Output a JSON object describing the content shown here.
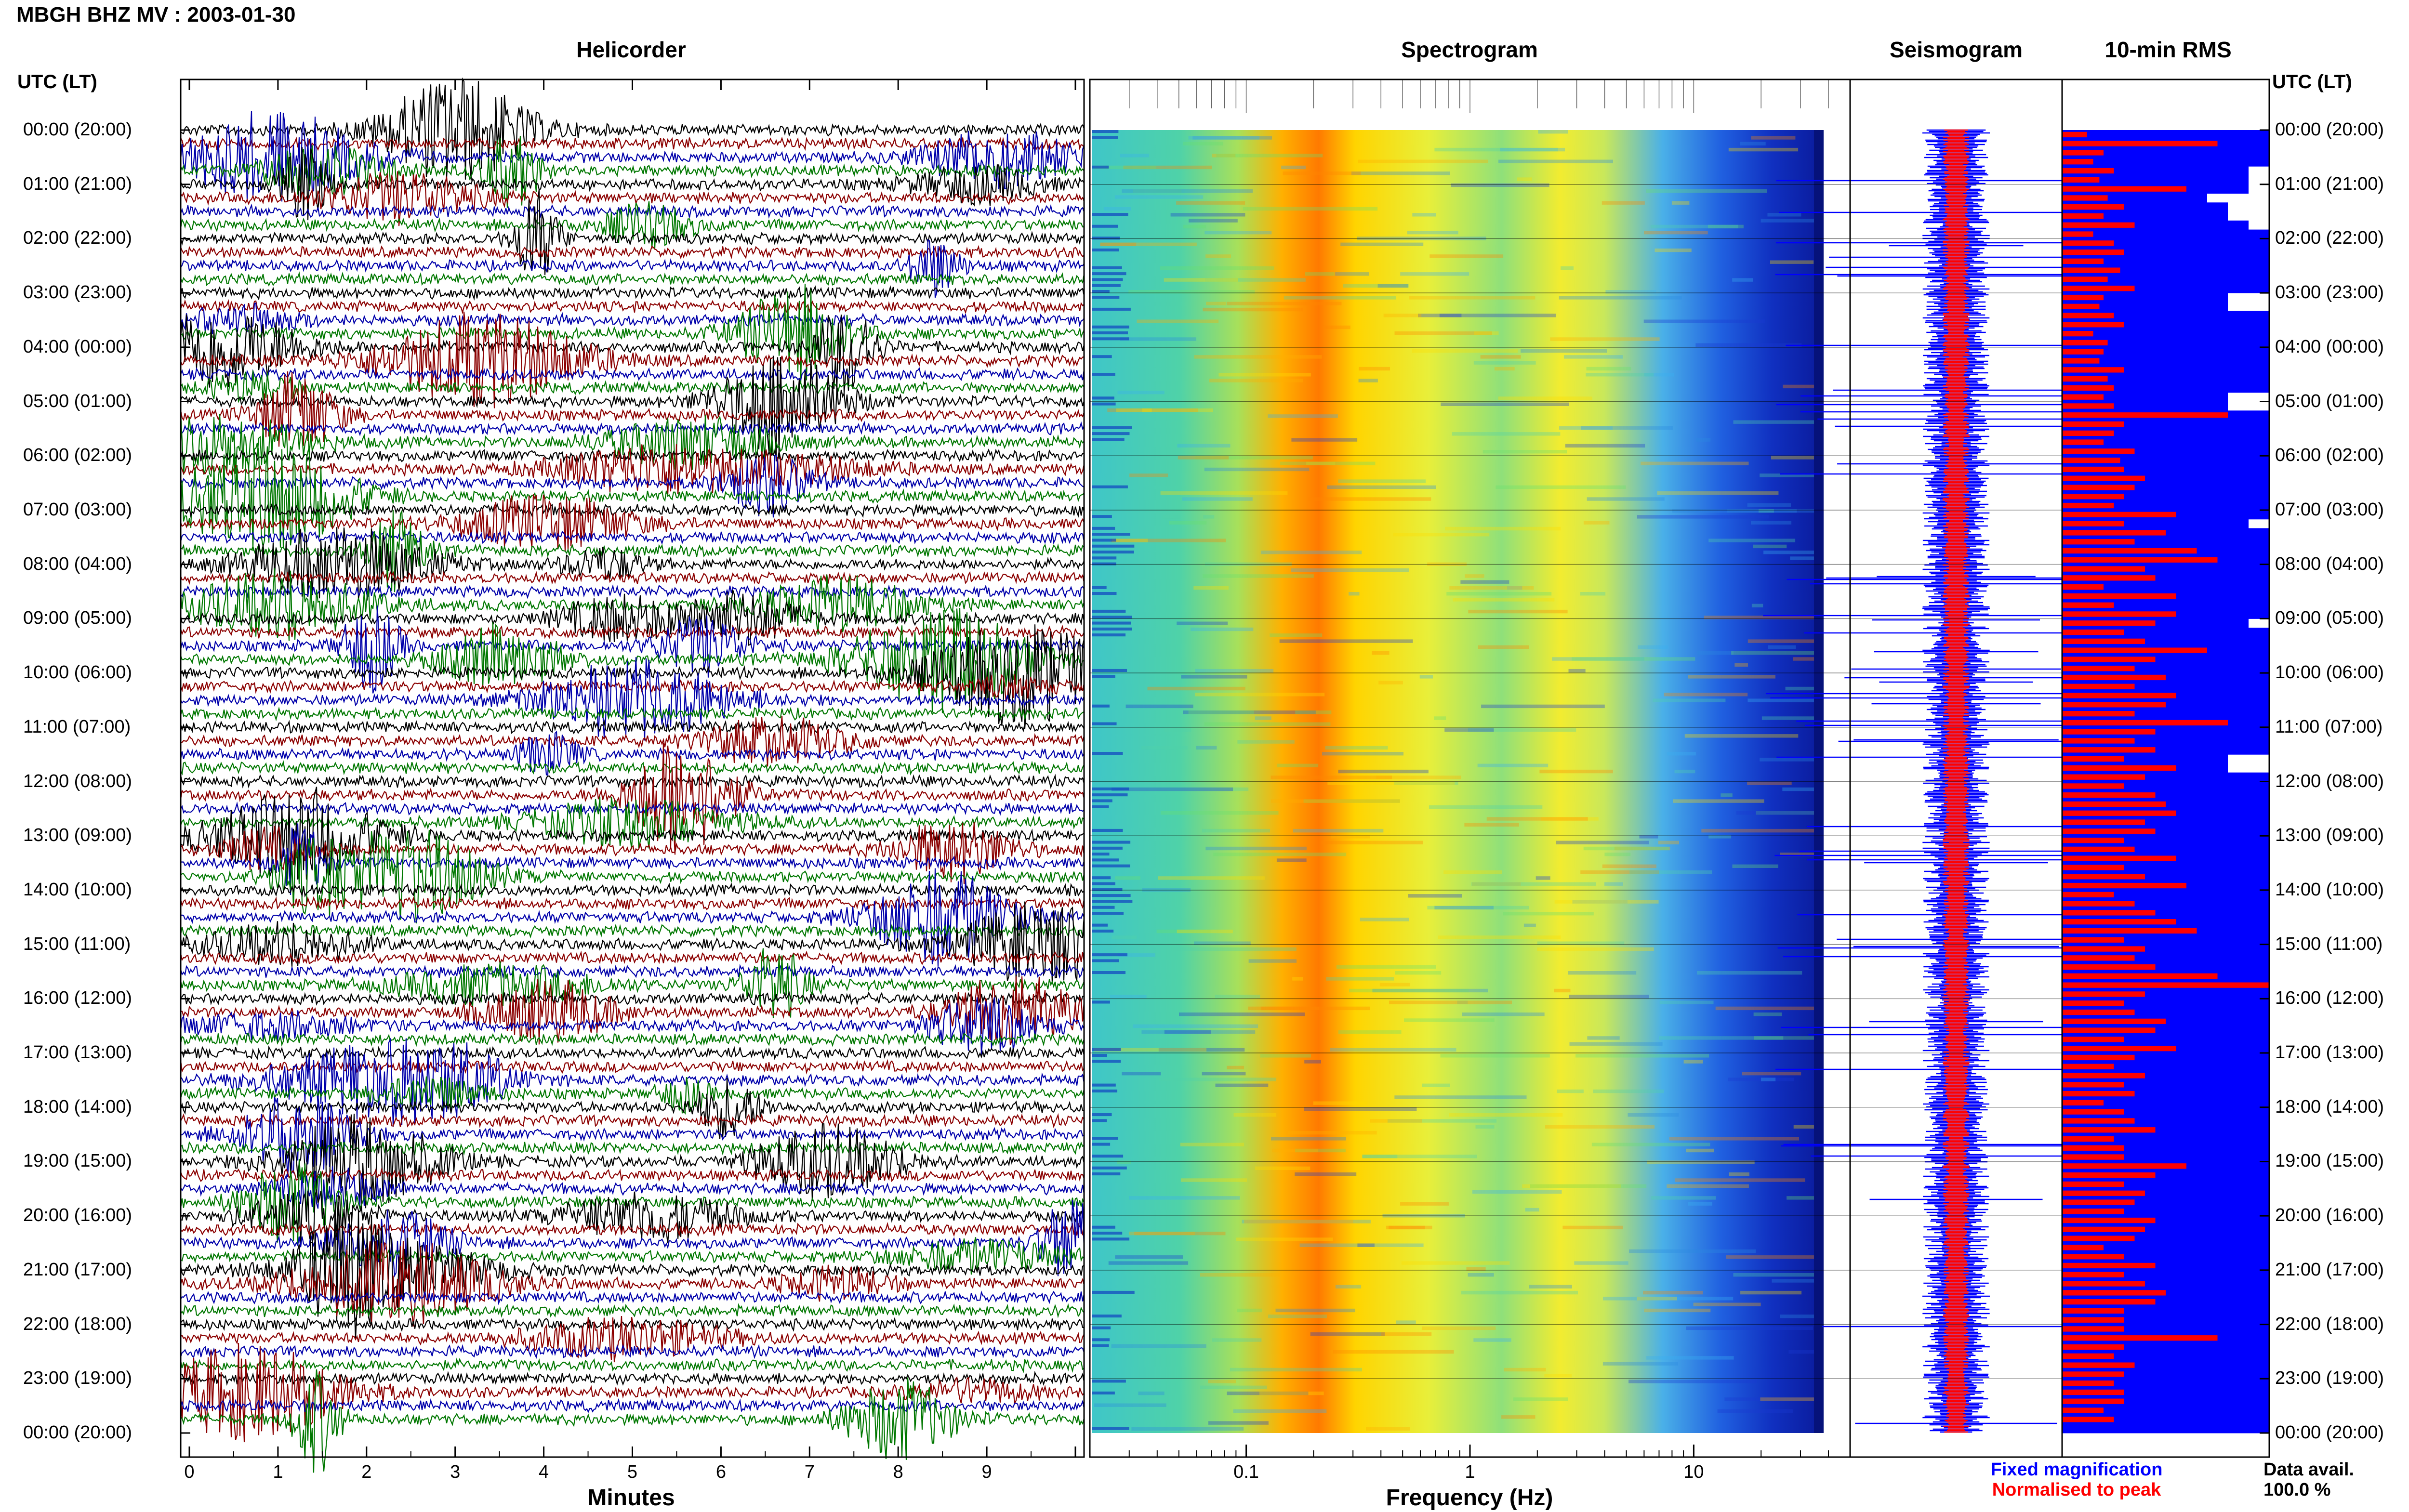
{
  "header": {
    "title": "MBGH BHZ MV : 2003-01-30",
    "time_axis_label": "UTC (LT)"
  },
  "panels": {
    "helicorder": "Helicorder",
    "spectrogram": "Spectrogram",
    "seismogram": "Seismogram",
    "rms": "10-min RMS"
  },
  "axes": {
    "helicorder_xlabel": "Minutes",
    "spectrogram_xlabel": "Frequency (Hz)"
  },
  "legend": {
    "fixed": "Fixed magnification",
    "normalised": "Normalised to peak",
    "fixed_color": "#0000ff",
    "normalised_color": "#ff0000"
  },
  "data_availability": {
    "label": "Data avail.",
    "value": "100.0 %"
  },
  "chart_data": [
    {
      "type": "line",
      "name": "helicorder",
      "title": "Helicorder",
      "xlabel": "Minutes",
      "xlim": [
        0,
        10
      ],
      "x_ticks": [
        "0",
        "1",
        "2",
        "3",
        "4",
        "5",
        "6",
        "7",
        "8",
        "9"
      ],
      "trace_colors": [
        "#000000",
        "#8b0000",
        "#0000aa",
        "#007700"
      ],
      "y_ticks_left": [
        "00:00 (20:00)",
        "01:00 (21:00)",
        "02:00 (22:00)",
        "03:00 (23:00)",
        "04:00 (00:00)",
        "05:00 (01:00)",
        "06:00 (02:00)",
        "07:00 (03:00)",
        "08:00 (04:00)",
        "09:00 (05:00)",
        "10:00 (06:00)",
        "11:00 (07:00)",
        "12:00 (08:00)",
        "13:00 (09:00)",
        "14:00 (10:00)",
        "15:00 (11:00)",
        "16:00 (12:00)",
        "17:00 (13:00)",
        "18:00 (14:00)",
        "19:00 (15:00)",
        "20:00 (16:00)",
        "21:00 (17:00)",
        "22:00 (18:00)",
        "23:00 (19:00)",
        "00:00 (20:00)"
      ]
    },
    {
      "type": "heatmap",
      "name": "spectrogram",
      "title": "Spectrogram",
      "xlabel": "Frequency (Hz)",
      "xscale": "log",
      "xlim": [
        0.02,
        50
      ],
      "x_ticks": [
        "0.1",
        "1",
        "10"
      ],
      "x_tick_values": [
        0.1,
        1,
        10
      ],
      "colormap": "jet"
    },
    {
      "type": "line",
      "name": "seismogram",
      "title": "Seismogram",
      "series": [
        {
          "name": "Fixed magnification",
          "color": "#0000ff"
        },
        {
          "name": "Normalised to peak",
          "color": "#ff0000"
        }
      ]
    },
    {
      "type": "bar",
      "name": "rms",
      "title": "10-min RMS",
      "orientation": "horizontal",
      "series": [
        {
          "name": "Fixed magnification",
          "color": "#0000ff",
          "values": [
            1.0,
            1.0,
            1.0,
            1.0,
            0.9,
            0.9,
            0.9,
            0.7,
            0.8,
            0.8,
            0.9,
            1.0,
            1.0,
            1.0,
            1.0,
            1.0,
            1.0,
            1.0,
            0.8,
            0.8,
            1.0,
            1.0,
            1.0,
            1.0,
            1.0,
            1.0,
            1.0,
            1.0,
            1.0,
            0.8,
            0.8,
            1.0,
            1.0,
            1.0,
            1.0,
            1.0,
            1.0,
            1.0,
            1.0,
            1.0,
            1.0,
            1.0,
            1.0,
            0.9,
            1.0,
            1.0,
            1.0,
            1.0,
            1.0,
            1.0,
            1.0,
            1.0,
            1.0,
            1.0,
            0.9,
            1.0,
            1.0,
            1.0,
            1.0,
            1.0,
            1.0,
            1.0,
            1.0,
            1.0,
            1.0,
            1.0,
            1.0,
            1.0,
            1.0,
            0.8,
            0.8,
            1.0,
            1.0,
            1.0,
            1.0,
            1.0,
            1.0,
            1.0,
            1.0,
            1.0,
            1.0,
            1.0,
            1.0,
            1.0,
            1.0,
            1.0,
            1.0,
            1.0,
            1.0,
            1.0,
            1.0,
            1.0,
            1.0,
            1.0,
            1.0,
            1.0,
            1.0,
            1.0,
            1.0,
            1.0,
            1.0,
            1.0,
            1.0,
            1.0,
            1.0,
            1.0,
            1.0,
            1.0,
            1.0,
            1.0,
            1.0,
            1.0,
            1.0,
            1.0,
            1.0,
            1.0,
            1.0,
            1.0,
            1.0,
            1.0,
            1.0,
            1.0,
            1.0,
            1.0,
            1.0,
            1.0,
            1.0,
            1.0,
            1.0,
            1.0,
            1.0,
            1.0,
            1.0,
            1.0,
            1.0,
            1.0,
            1.0,
            1.0,
            1.0,
            1.0,
            1.0,
            1.0,
            1.0,
            1.0
          ]
        },
        {
          "name": "Normalised to peak",
          "color": "#ff0000",
          "values": [
            0.12,
            0.75,
            0.2,
            0.15,
            0.25,
            0.18,
            0.6,
            0.22,
            0.3,
            0.2,
            0.35,
            0.15,
            0.25,
            0.3,
            0.2,
            0.28,
            0.22,
            0.35,
            0.2,
            0.18,
            0.25,
            0.3,
            0.15,
            0.22,
            0.2,
            0.18,
            0.3,
            0.22,
            0.25,
            0.2,
            0.25,
            0.8,
            0.3,
            0.25,
            0.2,
            0.35,
            0.28,
            0.3,
            0.4,
            0.35,
            0.3,
            0.25,
            0.55,
            0.3,
            0.5,
            0.35,
            0.65,
            0.75,
            0.4,
            0.45,
            0.2,
            0.55,
            0.25,
            0.55,
            0.45,
            0.3,
            0.4,
            0.7,
            0.45,
            0.35,
            0.5,
            0.35,
            0.55,
            0.5,
            0.35,
            0.8,
            0.45,
            0.35,
            0.45,
            0.3,
            0.55,
            0.4,
            0.3,
            0.45,
            0.5,
            0.55,
            0.4,
            0.45,
            0.3,
            0.35,
            0.55,
            0.3,
            0.4,
            0.6,
            0.25,
            0.35,
            0.45,
            0.55,
            0.65,
            0.3,
            0.4,
            0.35,
            0.45,
            0.75,
            1.0,
            0.4,
            0.3,
            0.35,
            0.5,
            0.45,
            0.3,
            0.55,
            0.35,
            0.25,
            0.4,
            0.3,
            0.35,
            0.2,
            0.3,
            0.35,
            0.45,
            0.25,
            0.3,
            0.3,
            0.6,
            0.45,
            0.3,
            0.4,
            0.35,
            0.3,
            0.45,
            0.4,
            0.35,
            0.2,
            0.3,
            0.45,
            0.3,
            0.4,
            0.5,
            0.45,
            0.3,
            0.3,
            0.3,
            0.75,
            0.3,
            0.25,
            0.35,
            0.3,
            0.25,
            0.3,
            0.3,
            0.2,
            0.25
          ]
        }
      ],
      "y_ticks_right": [
        "00:00 (20:00)",
        "01:00 (21:00)",
        "02:00 (22:00)",
        "03:00 (23:00)",
        "04:00 (00:00)",
        "05:00 (01:00)",
        "06:00 (02:00)",
        "07:00 (03:00)",
        "08:00 (04:00)",
        "09:00 (05:00)",
        "10:00 (06:00)",
        "11:00 (07:00)",
        "12:00 (08:00)",
        "13:00 (09:00)",
        "14:00 (10:00)",
        "15:00 (11:00)",
        "16:00 (12:00)",
        "17:00 (13:00)",
        "18:00 (14:00)",
        "19:00 (15:00)",
        "20:00 (16:00)",
        "21:00 (17:00)",
        "22:00 (18:00)",
        "23:00 (19:00)",
        "00:00 (20:00)"
      ]
    }
  ]
}
